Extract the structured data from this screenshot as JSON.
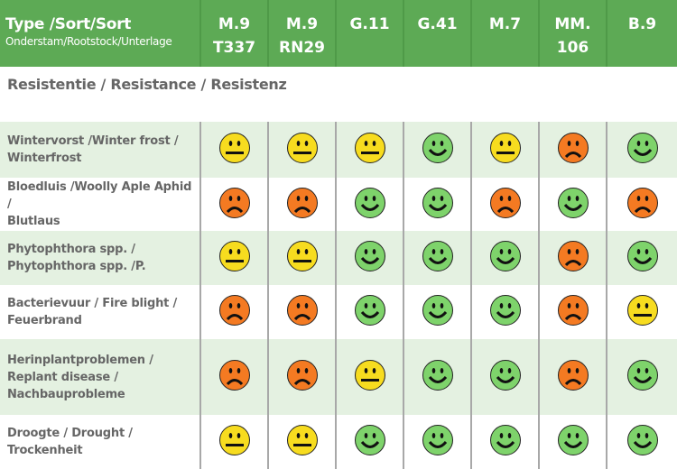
{
  "header": {
    "title": "Type /Sort/Sort",
    "subtitle": "Onderstam/Rootstock/Unterlage",
    "columns": [
      {
        "line1": "M.9",
        "line2": "T337"
      },
      {
        "line1": "M.9",
        "line2": "RN29"
      },
      {
        "line1": "G.11",
        "line2": ""
      },
      {
        "line1": "G.41",
        "line2": ""
      },
      {
        "line1": "M.7",
        "line2": ""
      },
      {
        "line1": "MM.",
        "line2": "106"
      },
      {
        "line1": "B.9",
        "line2": ""
      }
    ]
  },
  "section": "Resistentie / Resistance / Resistenz",
  "colors": {
    "good": "#7ed36b",
    "neutral": "#f7dc1f",
    "bad": "#f47a22",
    "header": "#5daa55",
    "row_alt": "#e4f1e1"
  },
  "rows": [
    {
      "label": [
        "Wintervorst /Winter frost /",
        "Winterfrost"
      ],
      "ratings": [
        "neutral",
        "neutral",
        "neutral",
        "good",
        "neutral",
        "bad",
        "good"
      ]
    },
    {
      "label": [
        "Bloedluis /Woolly Aple Aphid /",
        "Blutlaus"
      ],
      "ratings": [
        "bad",
        "bad",
        "good",
        "good",
        "bad",
        "good",
        "bad"
      ]
    },
    {
      "label": [
        "Phytophthora spp. /",
        "Phytophthora spp. /P."
      ],
      "ratings": [
        "neutral",
        "neutral",
        "good",
        "good",
        "good",
        "bad",
        "good"
      ]
    },
    {
      "label": [
        "Bacterievuur / Fire blight /",
        "Feuerbrand"
      ],
      "ratings": [
        "bad",
        "bad",
        "good",
        "good",
        "good",
        "bad",
        "neutral"
      ]
    },
    {
      "label": [
        "Herinplantproblemen /",
        "Replant disease /",
        "Nachbauprobleme"
      ],
      "ratings": [
        "bad",
        "bad",
        "neutral",
        "good",
        "good",
        "bad",
        "good"
      ]
    },
    {
      "label": [
        "Droogte / Drought /",
        "Trockenheit"
      ],
      "ratings": [
        "neutral",
        "neutral",
        "good",
        "good",
        "good",
        "good",
        "good"
      ]
    }
  ]
}
